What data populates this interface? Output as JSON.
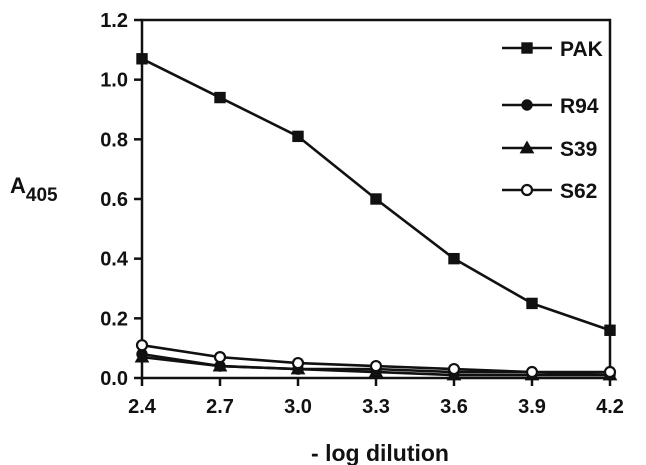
{
  "chart_data": {
    "type": "line",
    "xlabel": "- log dilution",
    "ylabel": {
      "main": "A",
      "sub": "405"
    },
    "x": [
      2.4,
      2.7,
      3.0,
      3.3,
      3.6,
      3.9,
      4.2
    ],
    "x_tick_labels": [
      "2.4",
      "2.7",
      "3.0",
      "3.3",
      "3.6",
      "3.9",
      "4.2"
    ],
    "y_ticks": [
      0.0,
      0.2,
      0.4,
      0.6,
      0.8,
      1.0,
      1.2
    ],
    "y_tick_labels": [
      "0.0",
      "0.2",
      "0.4",
      "0.6",
      "0.8",
      "1.0",
      "1.2"
    ],
    "xlim": [
      2.4,
      4.2
    ],
    "ylim": [
      0,
      1.2
    ],
    "grid": false,
    "legend_position": "top-right",
    "series": [
      {
        "name": "PAK",
        "marker": "square-filled",
        "values": [
          1.07,
          0.94,
          0.81,
          0.6,
          0.4,
          0.25,
          0.16
        ]
      },
      {
        "name": "R94",
        "marker": "circle-filled",
        "values": [
          0.08,
          0.04,
          0.03,
          0.03,
          0.02,
          0.02,
          0.01
        ]
      },
      {
        "name": "S39",
        "marker": "triangle-filled",
        "values": [
          0.07,
          0.04,
          0.03,
          0.02,
          0.01,
          0.01,
          0.01
        ]
      },
      {
        "name": "S62",
        "marker": "circle-open",
        "values": [
          0.11,
          0.07,
          0.05,
          0.04,
          0.03,
          0.02,
          0.02
        ]
      }
    ],
    "colors": {
      "ink": "#111111",
      "background": "#ffffff"
    }
  }
}
